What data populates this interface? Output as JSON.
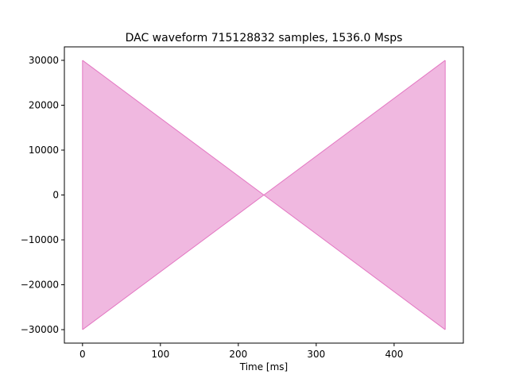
{
  "chart_data": {
    "type": "area",
    "title": "DAC waveform 715128832 samples, 1536.0 Msps",
    "xlabel": "Time [ms]",
    "ylabel": "",
    "xlim": [
      -23.28,
      488.87
    ],
    "ylim": [
      -33000,
      33000
    ],
    "x_ticks": [
      0,
      100,
      200,
      300,
      400
    ],
    "x_tick_labels": [
      "0",
      "100",
      "200",
      "300",
      "400"
    ],
    "y_ticks": [
      30000,
      20000,
      10000,
      0,
      -10000,
      -20000,
      -30000
    ],
    "y_tick_labels": [
      "30000",
      "20000",
      "10000",
      "0",
      "−10000",
      "−20000",
      "−30000"
    ],
    "grid": false,
    "legend": "none",
    "series": [
      {
        "color": "#e377c2",
        "fill_color": "#f0b8e0",
        "x": [
          0,
          232.8,
          465.59
        ],
        "upper": [
          30000,
          0,
          30000
        ],
        "lower": [
          -30000,
          0,
          -30000
        ]
      }
    ]
  }
}
